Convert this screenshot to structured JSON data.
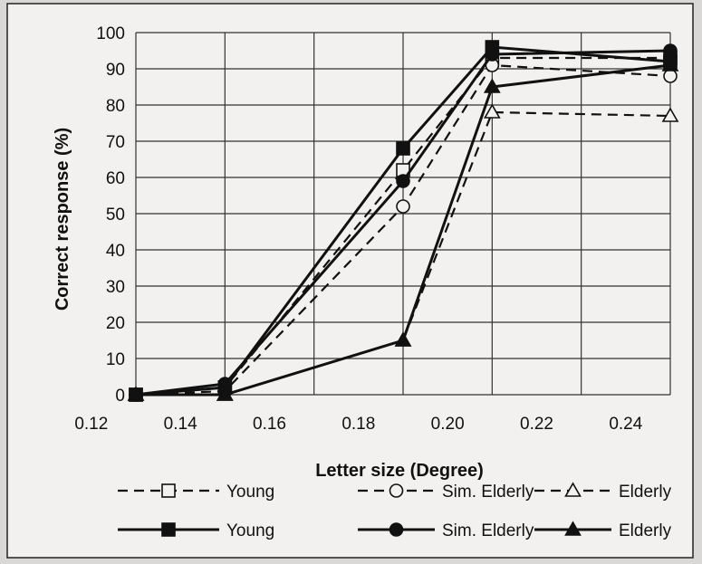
{
  "chart_data": {
    "type": "line",
    "title": "",
    "xlabel": "Letter size (Degree)",
    "ylabel": "Correct response (%)",
    "x_ticks": [
      "0.12",
      "0.14",
      "0.16",
      "0.18",
      "0.20",
      "0.22",
      "0.24"
    ],
    "y_ticks": [
      "0",
      "10",
      "20",
      "30",
      "40",
      "50",
      "60",
      "70",
      "80",
      "90",
      "100"
    ],
    "xlim": [
      0.12,
      0.24
    ],
    "ylim": [
      0,
      100
    ],
    "grid": true,
    "legend_position": "bottom",
    "series": [
      {
        "name": "Young",
        "line_style": "dashed",
        "marker": "open-square",
        "x": [
          0.12,
          0.14,
          0.18,
          0.2,
          0.24
        ],
        "y": [
          0,
          2,
          62,
          93,
          93
        ]
      },
      {
        "name": "Sim. Elderly",
        "line_style": "dashed",
        "marker": "open-circle",
        "x": [
          0.12,
          0.14,
          0.18,
          0.2,
          0.24
        ],
        "y": [
          0,
          1,
          52,
          91,
          88
        ]
      },
      {
        "name": "Elderly",
        "line_style": "dashed",
        "marker": "open-triangle",
        "x": [
          0.12,
          0.14,
          0.18,
          0.2,
          0.24
        ],
        "y": [
          0,
          0,
          15,
          78,
          77
        ]
      },
      {
        "name": "Young",
        "line_style": "solid",
        "marker": "filled-square",
        "x": [
          0.12,
          0.14,
          0.18,
          0.2,
          0.24
        ],
        "y": [
          0,
          2,
          68,
          96,
          92
        ]
      },
      {
        "name": "Sim. Elderly",
        "line_style": "solid",
        "marker": "filled-circle",
        "x": [
          0.12,
          0.14,
          0.18,
          0.2,
          0.24
        ],
        "y": [
          0,
          3,
          59,
          94,
          95
        ]
      },
      {
        "name": "Elderly",
        "line_style": "solid",
        "marker": "filled-triangle",
        "x": [
          0.12,
          0.14,
          0.18,
          0.2,
          0.24
        ],
        "y": [
          0,
          0,
          15,
          85,
          91
        ]
      }
    ]
  }
}
